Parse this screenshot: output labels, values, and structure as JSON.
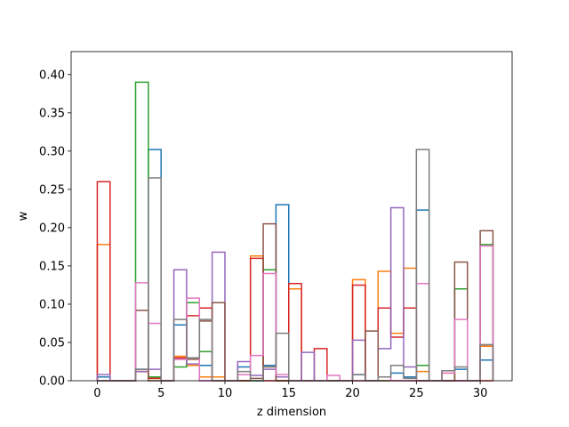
{
  "chart_data": {
    "type": "step-histogram",
    "xlabel": "z dimension",
    "ylabel": "w",
    "xlim": [
      -2.05,
      32.5
    ],
    "ylim": [
      0,
      0.43
    ],
    "xticks": [
      0,
      5,
      10,
      15,
      20,
      25,
      30
    ],
    "yticks": [
      0.0,
      0.05,
      0.1,
      0.15,
      0.2,
      0.25,
      0.3,
      0.35,
      0.4
    ],
    "ytick_labels": [
      "0.00",
      "0.05",
      "0.10",
      "0.15",
      "0.20",
      "0.25",
      "0.30",
      "0.35",
      "0.40"
    ],
    "bins": [
      0,
      1,
      2,
      3,
      4,
      5,
      6,
      7,
      8,
      9,
      10,
      11,
      12,
      13,
      14,
      15,
      16,
      17,
      18,
      19,
      20,
      21,
      22,
      23,
      24,
      25,
      26,
      27,
      28,
      29,
      30,
      31
    ],
    "grid": false,
    "series": [
      {
        "color": "#1f77b4",
        "values": [
          0.005,
          0,
          0,
          0.015,
          0.302,
          0,
          0.073,
          0.02,
          0.02,
          0,
          0,
          0.018,
          0,
          0.02,
          0.23,
          0,
          0,
          0,
          0,
          0,
          0.008,
          0,
          0.005,
          0.01,
          0.005,
          0.223,
          0,
          0.013,
          0.015,
          0,
          0.027
        ]
      },
      {
        "color": "#ff7f0e",
        "values": [
          0.178,
          0,
          0,
          0.012,
          0.003,
          0,
          0.032,
          0.02,
          0.005,
          0.005,
          0,
          0,
          0.163,
          0.018,
          0,
          0.12,
          0,
          0,
          0,
          0,
          0.132,
          0,
          0.143,
          0.062,
          0.147,
          0.012,
          0,
          0.01,
          0,
          0,
          0.045
        ]
      },
      {
        "color": "#2ca02c",
        "values": [
          0,
          0,
          0,
          0.39,
          0.005,
          0,
          0.018,
          0.102,
          0.038,
          0,
          0,
          0,
          0,
          0.145,
          0,
          0,
          0,
          0,
          0,
          0,
          0,
          0,
          0,
          0,
          0,
          0.02,
          0,
          0,
          0.12,
          0,
          0.178
        ]
      },
      {
        "color": "#d62728",
        "values": [
          0.26,
          0,
          0,
          0.012,
          0.003,
          0,
          0.03,
          0.085,
          0.095,
          0,
          0,
          0,
          0.16,
          0,
          0,
          0.127,
          0,
          0.042,
          0,
          0,
          0.125,
          0,
          0.095,
          0.057,
          0.095,
          0,
          0,
          0,
          0,
          0,
          0
        ]
      },
      {
        "color": "#9467bd",
        "values": [
          0.008,
          0,
          0,
          0.012,
          0.015,
          0,
          0.145,
          0.022,
          0,
          0.168,
          0,
          0.025,
          0.007,
          0.015,
          0.005,
          0,
          0.037,
          0,
          0,
          0,
          0.053,
          0,
          0.042,
          0.226,
          0.018,
          0,
          0,
          0,
          0,
          0,
          0.047
        ]
      },
      {
        "color": "#8c564b",
        "values": [
          0,
          0,
          0,
          0.092,
          0,
          0,
          0.028,
          0.028,
          0.078,
          0.102,
          0,
          0,
          0.003,
          0.205,
          0,
          0,
          0,
          0,
          0,
          0,
          0,
          0.065,
          0,
          0,
          0,
          0,
          0,
          0,
          0.155,
          0,
          0.196
        ]
      },
      {
        "color": "#e377c2",
        "values": [
          0,
          0,
          0,
          0.128,
          0.075,
          0,
          0.028,
          0.108,
          0,
          0,
          0,
          0.008,
          0.033,
          0.14,
          0.008,
          0,
          0,
          0,
          0.007,
          0,
          0,
          0,
          0.005,
          0,
          0,
          0.127,
          0,
          0.01,
          0.08,
          0,
          0.176
        ]
      },
      {
        "color": "#7f7f7f",
        "values": [
          0,
          0,
          0,
          0.015,
          0.265,
          0,
          0.08,
          0.03,
          0.08,
          0,
          0,
          0.012,
          0,
          0.018,
          0.062,
          0,
          0,
          0,
          0,
          0,
          0.008,
          0,
          0.005,
          0.02,
          0.003,
          0.302,
          0,
          0.013,
          0.018,
          0,
          0.047
        ]
      }
    ]
  }
}
